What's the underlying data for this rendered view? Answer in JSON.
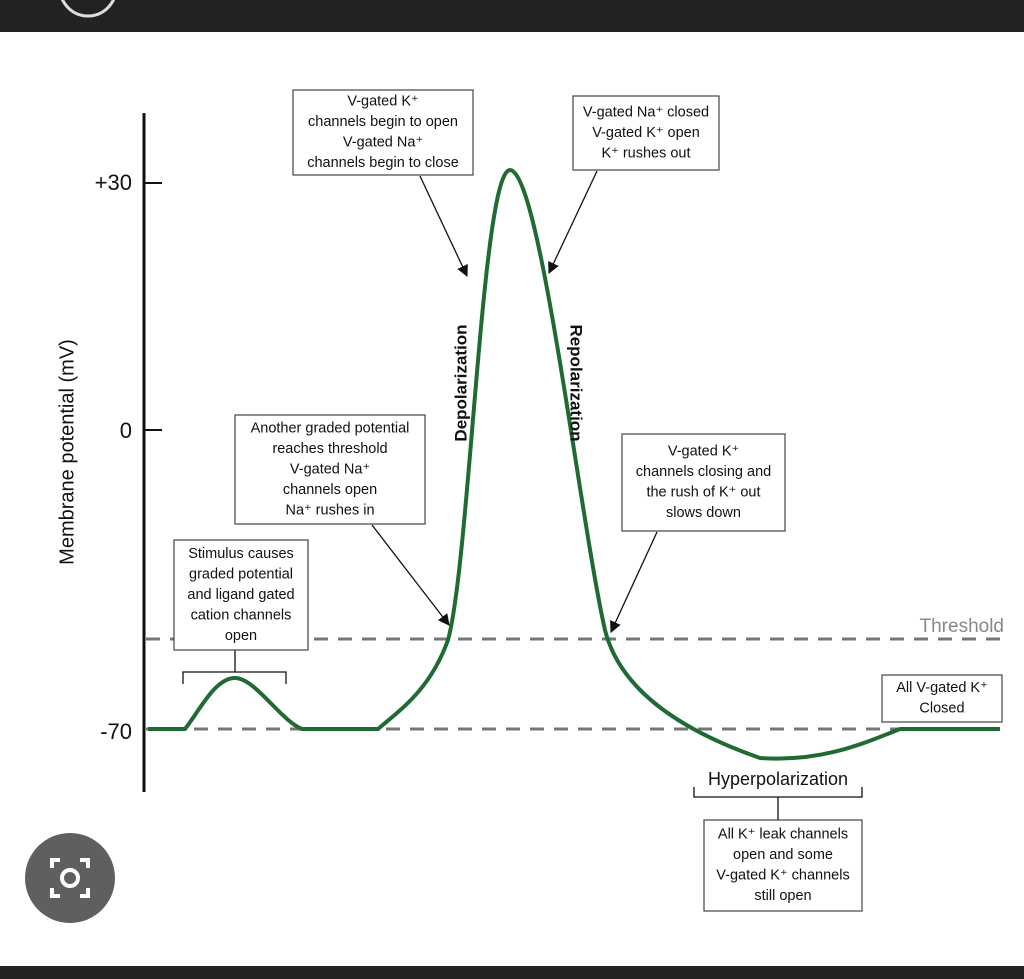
{
  "axis": {
    "label": "Membrane potential (mV)",
    "ticks": [
      "+30",
      "0",
      "-70"
    ]
  },
  "threshold_label": "Threshold",
  "phases": {
    "depolarization": "Depolarization",
    "repolarization": "Repolarization",
    "hyperpolarization": "Hyperpolarization"
  },
  "annotations": [
    {
      "lines": [
        "V-gated K⁺",
        "channels begin to open",
        "V-gated Na⁺",
        "channels begin to close"
      ]
    },
    {
      "lines": [
        "V-gated Na⁺ closed",
        "V-gated K⁺ open",
        "K⁺ rushes out"
      ]
    },
    {
      "lines": [
        "Another graded potential",
        "reaches threshold",
        "V-gated Na⁺",
        "channels open",
        "Na⁺ rushes in"
      ]
    },
    {
      "lines": [
        "V-gated K⁺",
        "channels closing and",
        "the rush of K⁺ out",
        "slows down"
      ]
    },
    {
      "lines": [
        "Stimulus causes",
        "graded potential",
        "and ligand gated",
        "cation channels",
        "open"
      ]
    },
    {
      "lines": [
        "All V-gated K⁺",
        "Closed"
      ]
    },
    {
      "lines": [
        "All K⁺ leak channels",
        "open and some",
        "V-gated K⁺ channels",
        "still open"
      ]
    }
  ]
}
